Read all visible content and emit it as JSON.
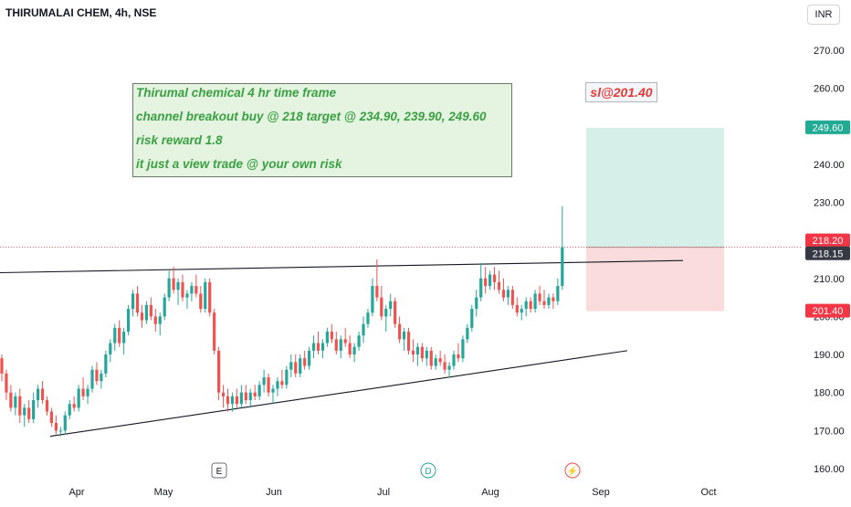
{
  "header": {
    "title": "THIRUMALAI CHEM, 4h, NSE",
    "currency": "INR"
  },
  "annotations": {
    "note_lines": [
      "Thirumal chemical 4 hr time frame",
      "channel breakout buy @ 218  target @ 234.90, 239.90, 249.60",
      "risk reward 1.8",
      "it just a view trade @ your own risk"
    ],
    "stop_loss_label": "sl@201.40"
  },
  "event_markers": [
    "E",
    "D",
    "⚡"
  ],
  "colors": {
    "up": "#26a69a",
    "down": "#ef5350",
    "note_text": "#3aa043",
    "target_zone": "#d6efe9",
    "stop_zone": "#fbdcdc",
    "target_badge": "#22ab94",
    "stop_badge": "#f23645"
  },
  "chart_data": {
    "type": "candlestick",
    "instrument": "THIRUMALAI CHEM",
    "timeframe": "4h",
    "exchange": "NSE",
    "y_axis": {
      "ticks": [
        160,
        170,
        180,
        190,
        200,
        210,
        220,
        230,
        240,
        250,
        260,
        270
      ],
      "labels": [
        "160.00",
        "170.00",
        "180.00",
        "190.00",
        "200.00",
        "210.00",
        "220.00",
        "230.00",
        "240.00",
        "250.00",
        "260.00",
        "270.00"
      ],
      "range": [
        157,
        276
      ]
    },
    "x_axis": {
      "labels": [
        "Apr",
        "May",
        "Jun",
        "Jul",
        "Aug",
        "Sep",
        "Oct"
      ]
    },
    "price_badges": [
      {
        "label": "249.60",
        "value": 249.6,
        "kind": "target"
      },
      {
        "label": "218.20",
        "value": 218.2,
        "kind": "last"
      },
      {
        "label": "218.15",
        "value": 218.15,
        "kind": "level"
      },
      {
        "label": "201.40",
        "value": 201.4,
        "kind": "stop"
      }
    ],
    "trend_lines": [
      {
        "name": "upper-channel",
        "from": {
          "t": 0,
          "price": 211.5
        },
        "to": {
          "t": 152,
          "price": 214.7
        }
      },
      {
        "name": "lower-channel",
        "from": {
          "t": 14,
          "price": 168.5
        },
        "to": {
          "t": 137,
          "price": 191.0
        }
      }
    ],
    "position": {
      "entry": 218.0,
      "target": 249.6,
      "stop": 201.4,
      "reward_risk": 1.8
    },
    "candles": [
      [
        189.0,
        190.0,
        183.0,
        185.0
      ],
      [
        185.0,
        186.0,
        178.0,
        180.0
      ],
      [
        180.0,
        182.0,
        175.0,
        176.0
      ],
      [
        176.0,
        180.0,
        174.0,
        179.0
      ],
      [
        179.0,
        181.0,
        172.0,
        174.0
      ],
      [
        174.0,
        177.0,
        171.0,
        176.0
      ],
      [
        176.0,
        178.0,
        172.0,
        173.0
      ],
      [
        173.0,
        180.0,
        172.0,
        178.0
      ],
      [
        178.0,
        182.0,
        176.0,
        181.0
      ],
      [
        181.0,
        183.0,
        177.0,
        178.0
      ],
      [
        178.0,
        179.0,
        174.0,
        175.0
      ],
      [
        175.0,
        176.0,
        171.0,
        172.0
      ],
      [
        172.0,
        174.0,
        169.0,
        170.0
      ],
      [
        170.0,
        171.0,
        168.5,
        170.0
      ],
      [
        170.0,
        175.0,
        169.0,
        174.0
      ],
      [
        174.0,
        178.0,
        173.0,
        177.0
      ],
      [
        177.0,
        179.0,
        175.0,
        176.0
      ],
      [
        176.0,
        182.0,
        175.0,
        181.0
      ],
      [
        181.0,
        184.0,
        178.0,
        179.0
      ],
      [
        179.0,
        182.0,
        177.0,
        181.0
      ],
      [
        181.0,
        187.0,
        180.0,
        186.0
      ],
      [
        186.0,
        188.0,
        182.0,
        183.0
      ],
      [
        183.0,
        186.0,
        181.0,
        185.0
      ],
      [
        185.0,
        191.0,
        184.0,
        190.0
      ],
      [
        190.0,
        194.0,
        188.0,
        193.0
      ],
      [
        193.0,
        198.0,
        191.0,
        197.0
      ],
      [
        197.0,
        199.0,
        192.0,
        193.0
      ],
      [
        193.0,
        197.0,
        190.0,
        196.0
      ],
      [
        196.0,
        203.0,
        195.0,
        202.0
      ],
      [
        202.0,
        207.0,
        200.0,
        206.0
      ],
      [
        206.0,
        208.0,
        200.0,
        201.0
      ],
      [
        201.0,
        203.0,
        197.0,
        199.0
      ],
      [
        199.0,
        204.0,
        198.0,
        203.0
      ],
      [
        203.0,
        205.0,
        199.0,
        200.0
      ],
      [
        200.0,
        202.0,
        196.0,
        198.0
      ],
      [
        198.0,
        201.0,
        195.0,
        200.0
      ],
      [
        200.0,
        206.0,
        199.0,
        205.0
      ],
      [
        205.0,
        212.0,
        204.0,
        210.0
      ],
      [
        210.0,
        213.0,
        206.0,
        207.0
      ],
      [
        207.0,
        210.0,
        203.0,
        209.0
      ],
      [
        209.0,
        211.0,
        204.0,
        205.0
      ],
      [
        205.0,
        207.0,
        202.0,
        206.0
      ],
      [
        206.0,
        209.0,
        204.0,
        208.0
      ],
      [
        208.0,
        211.0,
        205.0,
        206.0
      ],
      [
        206.0,
        208.0,
        201.0,
        202.0
      ],
      [
        202.0,
        210.0,
        201.0,
        209.0
      ],
      [
        209.0,
        210.0,
        200.0,
        201.0
      ],
      [
        201.0,
        202.0,
        190.0,
        191.0
      ],
      [
        191.0,
        192.0,
        178.0,
        180.0
      ],
      [
        180.0,
        182.0,
        176.0,
        179.0
      ],
      [
        179.0,
        181.0,
        175.0,
        177.0
      ],
      [
        177.0,
        180.0,
        175.0,
        179.0
      ],
      [
        179.0,
        181.0,
        176.0,
        177.0
      ],
      [
        177.0,
        182.0,
        176.0,
        180.0
      ],
      [
        180.0,
        182.0,
        177.0,
        178.0
      ],
      [
        178.0,
        181.0,
        176.0,
        180.0
      ],
      [
        180.0,
        182.0,
        178.0,
        179.0
      ],
      [
        179.0,
        183.0,
        178.0,
        182.0
      ],
      [
        182.0,
        186.0,
        180.0,
        184.0
      ],
      [
        184.0,
        185.0,
        179.0,
        180.0
      ],
      [
        180.0,
        182.0,
        177.0,
        181.0
      ],
      [
        181.0,
        184.0,
        179.0,
        183.0
      ],
      [
        183.0,
        186.0,
        181.0,
        182.0
      ],
      [
        182.0,
        187.0,
        181.0,
        186.0
      ],
      [
        186.0,
        190.0,
        184.0,
        188.0
      ],
      [
        188.0,
        190.0,
        184.0,
        185.0
      ],
      [
        185.0,
        190.0,
        184.0,
        189.0
      ],
      [
        189.0,
        191.0,
        186.0,
        187.0
      ],
      [
        187.0,
        192.0,
        186.0,
        191.0
      ],
      [
        191.0,
        195.0,
        189.0,
        193.0
      ],
      [
        193.0,
        196.0,
        190.0,
        191.0
      ],
      [
        191.0,
        194.0,
        189.0,
        193.0
      ],
      [
        193.0,
        197.0,
        192.0,
        196.0
      ],
      [
        196.0,
        198.0,
        193.0,
        194.0
      ],
      [
        194.0,
        196.0,
        190.0,
        191.0
      ],
      [
        191.0,
        195.0,
        189.0,
        194.0
      ],
      [
        194.0,
        197.0,
        192.0,
        193.0
      ],
      [
        193.0,
        195.0,
        189.0,
        190.0
      ],
      [
        190.0,
        193.0,
        188.0,
        192.0
      ],
      [
        192.0,
        196.0,
        191.0,
        195.0
      ],
      [
        195.0,
        200.0,
        193.0,
        198.0
      ],
      [
        198.0,
        202.0,
        197.0,
        201.0
      ],
      [
        201.0,
        210.0,
        200.0,
        208.0
      ],
      [
        208.0,
        215.0,
        204.0,
        205.0
      ],
      [
        205.0,
        208.0,
        199.0,
        200.0
      ],
      [
        200.0,
        203.0,
        196.0,
        202.0
      ],
      [
        202.0,
        206.0,
        200.0,
        204.0
      ],
      [
        204.0,
        205.0,
        197.0,
        198.0
      ],
      [
        198.0,
        200.0,
        193.0,
        194.0
      ],
      [
        194.0,
        197.0,
        191.0,
        196.0
      ],
      [
        196.0,
        197.0,
        190.0,
        191.0
      ],
      [
        191.0,
        194.0,
        188.0,
        190.0
      ],
      [
        190.0,
        193.0,
        187.0,
        192.0
      ],
      [
        192.0,
        193.0,
        188.0,
        189.0
      ],
      [
        189.0,
        192.0,
        187.0,
        191.0
      ],
      [
        191.0,
        192.0,
        186.0,
        187.0
      ],
      [
        187.0,
        190.0,
        186.0,
        189.0
      ],
      [
        189.0,
        191.0,
        187.0,
        188.0
      ],
      [
        188.0,
        190.0,
        185.0,
        186.0
      ],
      [
        186.0,
        188.0,
        184.0,
        187.0
      ],
      [
        187.0,
        191.0,
        186.0,
        190.0
      ],
      [
        190.0,
        193.0,
        188.0,
        189.0
      ],
      [
        189.0,
        195.0,
        188.0,
        194.0
      ],
      [
        194.0,
        198.0,
        193.0,
        197.0
      ],
      [
        197.0,
        203.0,
        196.0,
        202.0
      ],
      [
        202.0,
        207.0,
        200.0,
        205.0
      ],
      [
        205.0,
        214.0,
        204.0,
        210.0
      ],
      [
        210.0,
        213.0,
        206.0,
        208.0
      ],
      [
        208.0,
        212.0,
        207.0,
        211.0
      ],
      [
        211.0,
        213.0,
        207.0,
        209.0
      ],
      [
        209.0,
        212.0,
        206.0,
        207.0
      ],
      [
        207.0,
        210.0,
        204.0,
        205.0
      ],
      [
        205.0,
        208.0,
        203.0,
        207.0
      ],
      [
        207.0,
        208.0,
        202.0,
        203.0
      ],
      [
        203.0,
        205.0,
        200.0,
        201.0
      ],
      [
        201.0,
        203.0,
        199.0,
        202.0
      ],
      [
        202.0,
        205.0,
        200.0,
        204.0
      ],
      [
        204.0,
        205.0,
        201.0,
        202.0
      ],
      [
        202.0,
        207.0,
        201.0,
        206.0
      ],
      [
        206.0,
        208.0,
        203.0,
        204.0
      ],
      [
        204.0,
        207.0,
        202.0,
        203.0
      ],
      [
        203.0,
        206.0,
        202.0,
        205.0
      ],
      [
        205.0,
        206.0,
        202.0,
        204.0
      ],
      [
        204.0,
        210.0,
        203.0,
        208.0
      ],
      [
        208.0,
        229.0,
        207.0,
        218.2
      ]
    ]
  }
}
